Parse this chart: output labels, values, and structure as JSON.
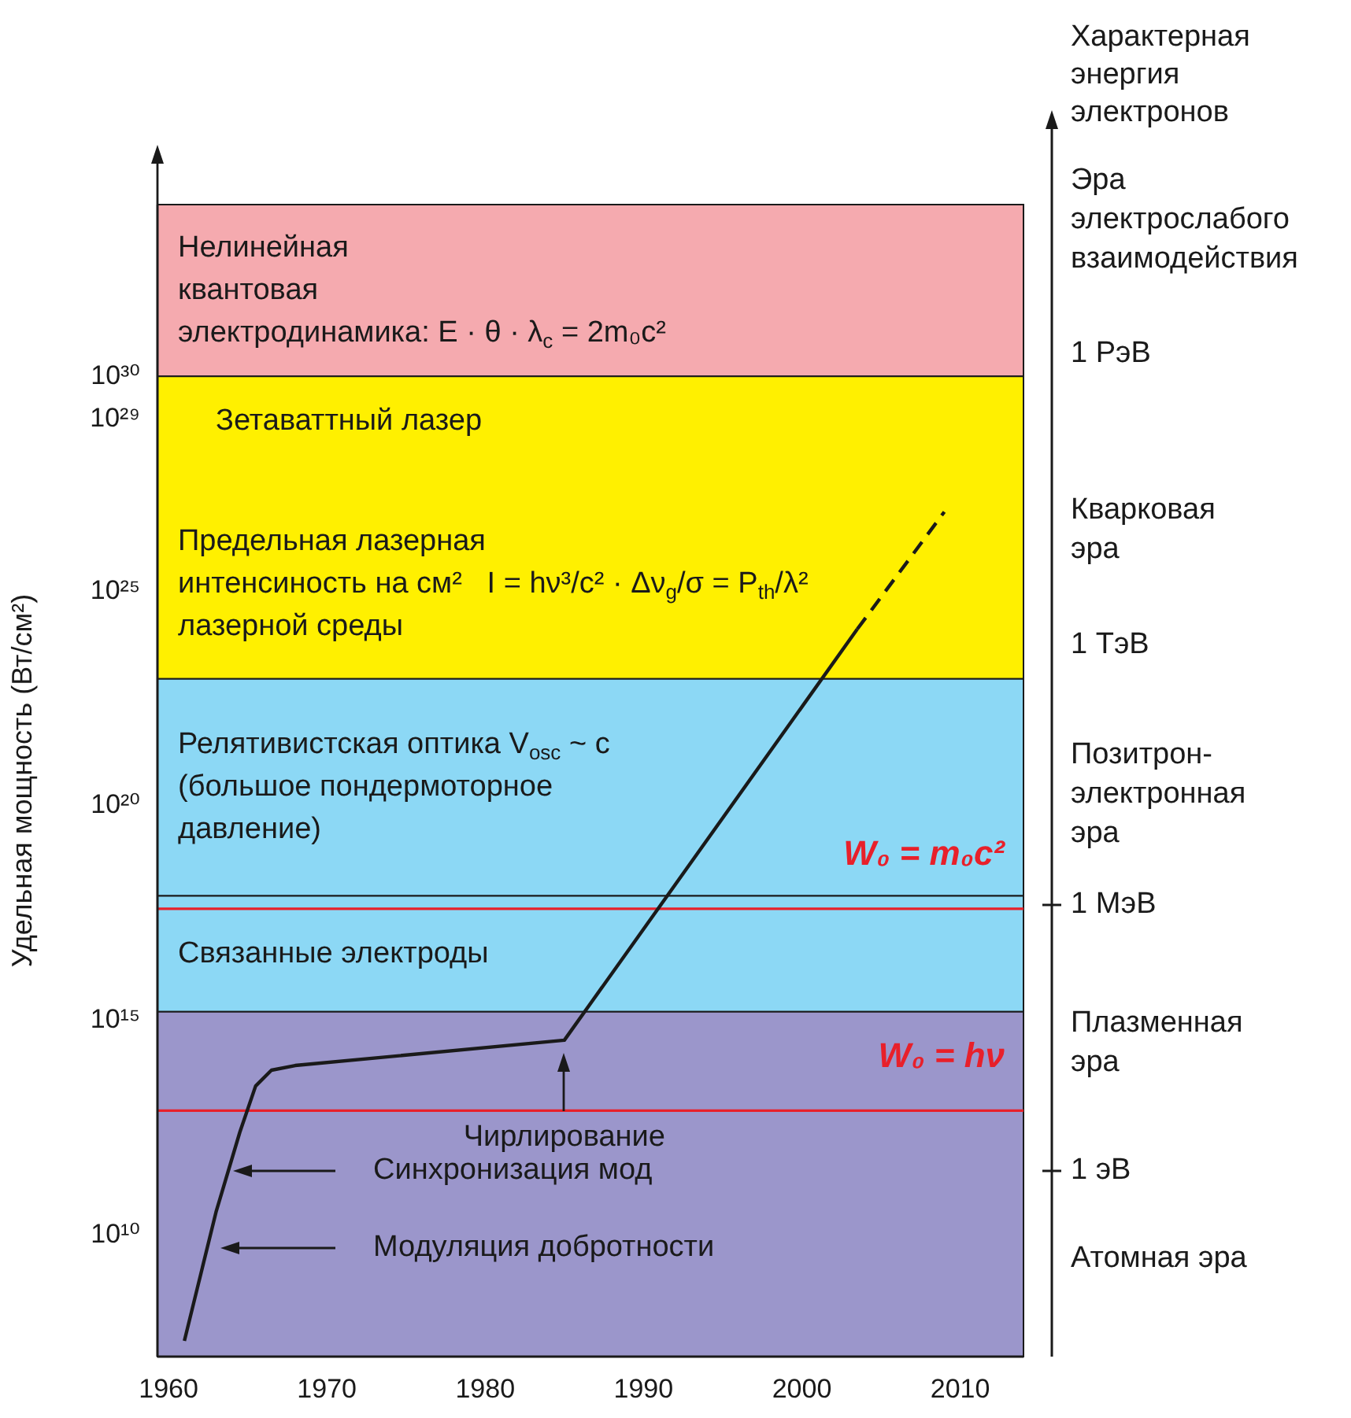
{
  "chart_data": {
    "type": "line",
    "ylabel": "Удельная мощность (Вт/см²)",
    "y2label": "Характерная\nэнергия\nэлектронов",
    "xlim": [
      1959.3,
      2014
    ],
    "xticks": [
      1960,
      1970,
      1980,
      1990,
      2000,
      2010
    ],
    "ylim": [
      15000000.0,
      1e+34
    ],
    "log": "y",
    "yticks": [
      {
        "value": 10000000000.0,
        "label": "10¹⁰"
      },
      {
        "value": 1000000000000000.0,
        "label": "10¹⁵"
      },
      {
        "value": 1e+20,
        "label": "10²⁰"
      },
      {
        "value": 1e+25,
        "label": "10²⁵"
      },
      {
        "value": 1e+29,
        "label": "10²⁹"
      },
      {
        "value": 1e+30,
        "label": "10³⁰"
      }
    ],
    "series": [
      {
        "type": "line",
        "color": "#1a1a1a",
        "line_style": "solid",
        "x": [
          1961,
          1963,
          1964.5,
          1965.5,
          1966.5,
          1968,
          1985,
          2003.5
        ],
        "values": [
          35000000.0,
          35000000000.0,
          2500000000000.0,
          30000000000000.0,
          70000000000000.0,
          90000000000000.0,
          350000000000000.0,
          1.3e+24
        ]
      },
      {
        "type": "line",
        "color": "#1a1a1a",
        "line_style": "dashed",
        "x": [
          2003.5,
          2009
        ],
        "values": [
          1.3e+24,
          7e+26
        ]
      }
    ],
    "bands": [
      {
        "axis": "y",
        "from": 1e+30,
        "to": 1e+34,
        "color": "#f5aaaf",
        "label": "Нелинейная\nквантовая\nэлектродинамика: E · θ · λ$_{c}$ = 2m₀c²"
      },
      {
        "axis": "y",
        "from": 9e+22,
        "to": 1e+30,
        "color": "#fff000",
        "label": "Предельная лазерная\nинтенсиность на см²   I = hν³/c² · Δν$_{g}$/σ = P$_{th}$/λ²\nлазерной среды"
      },
      {
        "axis": "y",
        "from": 8e+17,
        "to": 9e+22,
        "color": "#8cd8f5",
        "label": "Релятивистская оптика V$_{osc}$ ~ c\n(большое пондермоторное\nдавление)"
      },
      {
        "axis": "y",
        "from": 1600000000000000.0,
        "to": 8e+17,
        "color": "#8cd8f5",
        "label": "Связанные электроды"
      },
      {
        "axis": "y",
        "from": 15000000.0,
        "to": 1600000000000000.0,
        "color": "#9b96cb",
        "label": null
      }
    ],
    "ref_lines": [
      {
        "axis": "y",
        "value": 4e+17,
        "label": "W₀ = m₀c²",
        "color": "#e8202a"
      },
      {
        "axis": "y",
        "value": 8000000000000.0,
        "label": "W₀ = hν",
        "color": "#e8202a"
      }
    ],
    "annotations": [
      "Зетаваттный лазер",
      {
        "text": "Чирлирование",
        "x": 1985,
        "y": 350000000000000.0
      },
      "Синхронизация мод",
      "Модуляция добротности",
      "Эра\nэлектрослабого\nвзаимодействия",
      "Кварковая\nэра",
      "Позитрон-\nэлектронная\nэра",
      "Плазменная\nэра",
      "Атомная эра",
      "1 PэВ",
      "1 ТэВ",
      "1 МэВ",
      "1 эВ"
    ],
    "grid": false,
    "legend": false,
    "marker": "none"
  }
}
